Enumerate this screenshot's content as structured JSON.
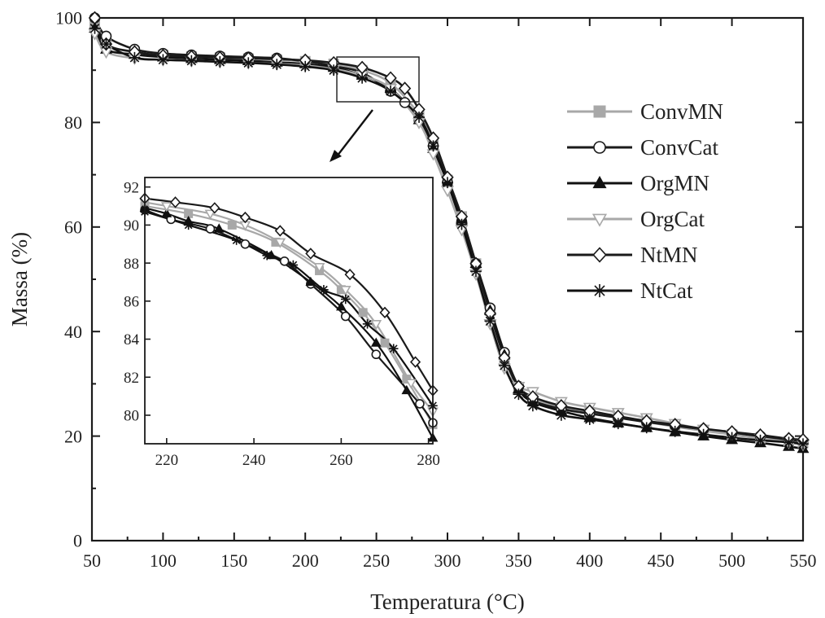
{
  "chart_data": [
    {
      "type": "line",
      "xlabel": "Temperatura (°C)",
      "ylabel": "Massa (%)",
      "xlim": [
        50,
        550
      ],
      "ylim": [
        0,
        100
      ],
      "xticks": [
        "50",
        "100",
        "150",
        "200",
        "250",
        "300",
        "350",
        "400",
        "450",
        "500",
        "550"
      ],
      "yticks": [
        "0",
        "20",
        "40",
        "60",
        "80",
        "100"
      ],
      "grid": false,
      "legend_position": "right",
      "legend": [
        "ConvMN",
        "ConvCat",
        "OrgMN",
        "OrgCat",
        "NtMN",
        "NtCat"
      ],
      "series": [
        {
          "name": "ConvMN",
          "color": "#a8a8a8",
          "marker": "square",
          "x": [
            52,
            60,
            80,
            100,
            120,
            140,
            160,
            180,
            200,
            220,
            240,
            260,
            280,
            290,
            300,
            310,
            320,
            330,
            340,
            350,
            360,
            380,
            400,
            420,
            440,
            460,
            480,
            500,
            520,
            540,
            550
          ],
          "y": [
            99,
            95,
            93.4,
            92.9,
            92.6,
            92.4,
            92.2,
            92,
            91.7,
            91.2,
            90,
            87.5,
            81.5,
            76,
            69,
            62,
            53,
            44,
            35,
            29,
            27,
            25.5,
            24.5,
            23.6,
            22.7,
            21.8,
            21,
            20.3,
            19.6,
            19,
            18.7
          ]
        },
        {
          "name": "ConvCat",
          "color": "#1a1a1a",
          "marker": "circle",
          "x": [
            52,
            60,
            80,
            100,
            120,
            140,
            160,
            180,
            200,
            220,
            240,
            260,
            270,
            280,
            290,
            300,
            310,
            320,
            330,
            340,
            350,
            360,
            380,
            400,
            420,
            440,
            460,
            480,
            500,
            520,
            540,
            550
          ],
          "y": [
            100,
            96.5,
            94,
            93.2,
            92.9,
            92.7,
            92.5,
            92.3,
            91.7,
            90.8,
            89.5,
            86,
            83.8,
            80.5,
            75.5,
            68.5,
            61,
            53,
            44.5,
            36,
            29.5,
            26.8,
            25.2,
            24.3,
            23.5,
            22.7,
            22,
            21.3,
            20.6,
            20,
            19.3,
            19
          ]
        },
        {
          "name": "OrgMN",
          "color": "#111111",
          "marker": "triangle-up",
          "x": [
            52,
            60,
            80,
            100,
            120,
            140,
            160,
            180,
            200,
            220,
            240,
            260,
            280,
            290,
            300,
            310,
            320,
            330,
            340,
            350,
            360,
            380,
            400,
            420,
            440,
            460,
            480,
            500,
            520,
            540,
            550
          ],
          "y": [
            98,
            94,
            93,
            92.5,
            92.2,
            92,
            91.8,
            91.5,
            91.2,
            90.5,
            89,
            86.5,
            80.5,
            75,
            68.5,
            61.5,
            53,
            44,
            35.5,
            29,
            26.5,
            24.8,
            23.5,
            22.5,
            21.6,
            20.8,
            20,
            19.3,
            18.7,
            18,
            17.6
          ]
        },
        {
          "name": "OrgCat",
          "color": "#a8a8a8",
          "marker": "triangle-down",
          "x": [
            52,
            60,
            80,
            100,
            120,
            140,
            160,
            180,
            200,
            220,
            240,
            260,
            280,
            290,
            300,
            310,
            320,
            330,
            340,
            350,
            360,
            380,
            400,
            420,
            440,
            460,
            480,
            500,
            520,
            540,
            550
          ],
          "y": [
            97,
            93.5,
            92.3,
            92,
            91.8,
            91.6,
            91.4,
            91.2,
            90.9,
            90.2,
            89,
            86.5,
            80,
            74,
            67,
            59.5,
            51,
            41.5,
            33,
            29.5,
            28.5,
            26.6,
            25.5,
            24.5,
            23.5,
            22.4,
            21.3,
            20.3,
            19.5,
            18.8,
            18.4
          ]
        },
        {
          "name": "NtMN",
          "color": "#1a1a1a",
          "marker": "diamond",
          "x": [
            52,
            60,
            80,
            100,
            120,
            140,
            160,
            180,
            200,
            220,
            240,
            260,
            270,
            280,
            290,
            300,
            310,
            320,
            330,
            340,
            350,
            360,
            380,
            400,
            420,
            440,
            460,
            480,
            500,
            520,
            540,
            550
          ],
          "y": [
            100,
            95,
            93.5,
            92.8,
            92.6,
            92.4,
            92.3,
            92.1,
            91.9,
            91.4,
            90.5,
            88.5,
            86.5,
            82.5,
            77,
            69.5,
            62,
            53,
            43.5,
            35,
            29.5,
            27.5,
            25.8,
            24.8,
            23.8,
            22.9,
            22.2,
            21.4,
            20.8,
            20.2,
            19.5,
            19.3
          ]
        },
        {
          "name": "NtCat",
          "color": "#111111",
          "marker": "asterisk",
          "x": [
            52,
            60,
            80,
            100,
            120,
            140,
            160,
            180,
            200,
            220,
            240,
            260,
            280,
            290,
            300,
            310,
            320,
            330,
            340,
            350,
            360,
            380,
            400,
            420,
            440,
            460,
            480,
            500,
            520,
            540,
            550
          ],
          "y": [
            98,
            95,
            92.4,
            92,
            91.8,
            91.6,
            91.4,
            91.1,
            90.7,
            90,
            88.5,
            86,
            81,
            75.5,
            68.5,
            60.5,
            51.5,
            42,
            33.5,
            28,
            25.8,
            24,
            23.2,
            22.4,
            21.6,
            20.9,
            20.3,
            19.7,
            19.2,
            18.8,
            18.5
          ]
        }
      ]
    },
    {
      "type": "line",
      "xlim": [
        215,
        281
      ],
      "ylim": [
        78.5,
        92.5
      ],
      "xticks": [
        "220",
        "240",
        "260",
        "280"
      ],
      "yticks": [
        "80",
        "82",
        "84",
        "86",
        "88",
        "90",
        "92"
      ],
      "series": [
        {
          "name": "ConvMN",
          "color": "#a8a8a8",
          "marker": "square",
          "x": [
            215,
            225,
            235,
            245,
            255,
            260,
            265,
            270,
            275,
            281
          ],
          "y": [
            91,
            90.6,
            90,
            89.1,
            87.6,
            86.6,
            85.4,
            83.8,
            81.9,
            79.5
          ]
        },
        {
          "name": "ConvCat",
          "color": "#1a1a1a",
          "marker": "circle",
          "x": [
            215,
            221,
            230,
            238,
            247,
            253,
            261,
            268,
            278,
            281
          ],
          "y": [
            90.8,
            90.3,
            89.8,
            89,
            88.1,
            86.9,
            85.2,
            83.2,
            80.6,
            79.6
          ]
        },
        {
          "name": "OrgMN",
          "color": "#111111",
          "marker": "triangle-up",
          "x": [
            215,
            220,
            225,
            232,
            244,
            253,
            260,
            268,
            275,
            281
          ],
          "y": [
            90.9,
            90.6,
            90.2,
            89.8,
            88.4,
            87,
            85.7,
            83.8,
            81.3,
            78.8
          ]
        },
        {
          "name": "OrgCat",
          "color": "#a8a8a8",
          "marker": "triangle-down",
          "x": [
            215,
            220,
            230,
            238,
            246,
            255,
            261,
            268,
            276,
            281
          ],
          "y": [
            91.2,
            91,
            90.6,
            90,
            89.1,
            87.8,
            86.6,
            84.8,
            81.7,
            80.2
          ]
        },
        {
          "name": "NtMN",
          "color": "#1a1a1a",
          "marker": "diamond",
          "x": [
            215,
            222,
            231,
            238,
            246,
            253,
            262,
            270,
            277,
            281
          ],
          "y": [
            91.4,
            91.2,
            90.9,
            90.4,
            89.7,
            88.5,
            87.4,
            85.4,
            82.8,
            81.3
          ]
        },
        {
          "name": "NtCat",
          "color": "#111111",
          "marker": "asterisk",
          "x": [
            215,
            225,
            236,
            243,
            249,
            256,
            261,
            266,
            272,
            281
          ],
          "y": [
            90.7,
            90,
            89.2,
            88.4,
            87.9,
            86.6,
            86.1,
            84.8,
            83.5,
            80.5
          ]
        }
      ]
    }
  ]
}
